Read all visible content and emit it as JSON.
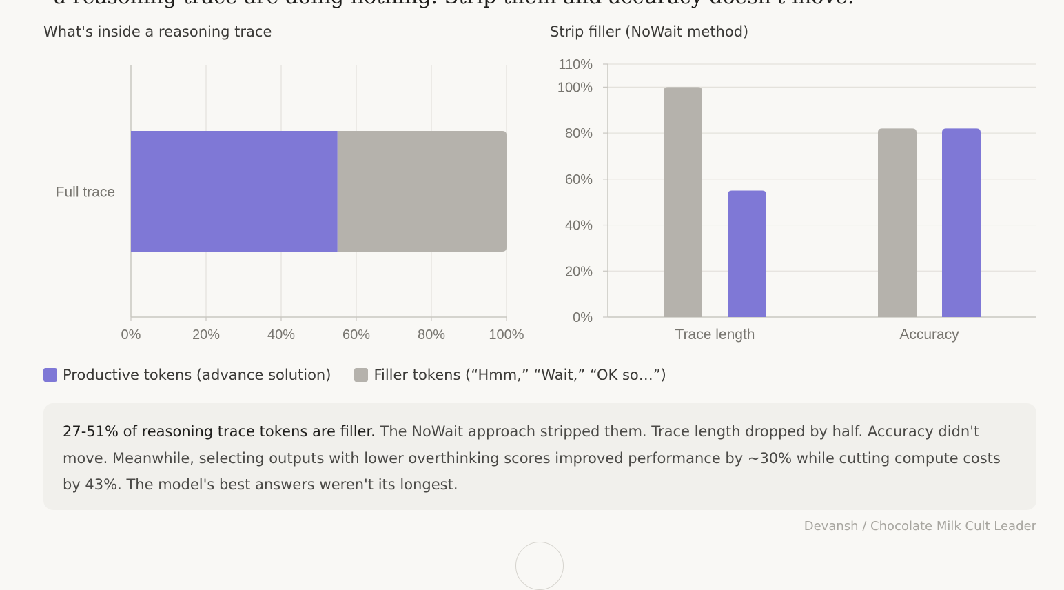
{
  "headline_partial": "a reasoning trace are doing nothing. Strip them and accuracy doesn't move.",
  "colors": {
    "productive": "#7f78d6",
    "filler": "#b5b2ac",
    "grid": "#e4e2dc",
    "axis": "#c9c7c1"
  },
  "chart_data": [
    {
      "type": "bar",
      "orientation": "horizontal",
      "stacked": true,
      "title": "What's inside a reasoning trace",
      "categories": [
        "Full trace"
      ],
      "series": [
        {
          "name": "Productive tokens (advance solution)",
          "color": "#7f78d6",
          "values": [
            55
          ]
        },
        {
          "name": "Filler tokens (“Hmm,” “Wait,” “OK so…”)",
          "color": "#b5b2ac",
          "values": [
            45
          ]
        }
      ],
      "xlim": [
        0,
        100
      ],
      "xticks": [
        "0%",
        "20%",
        "40%",
        "60%",
        "80%",
        "100%"
      ],
      "grid": true
    },
    {
      "type": "bar",
      "title": "Strip filler (NoWait method)",
      "categories": [
        "Trace length",
        "Accuracy"
      ],
      "series": [
        {
          "color": "#b5b2ac",
          "values": [
            100,
            82
          ]
        },
        {
          "color": "#7f78d6",
          "values": [
            55,
            82
          ]
        }
      ],
      "ylim": [
        0,
        110
      ],
      "yticks": [
        "0%",
        "20%",
        "40%",
        "60%",
        "80%",
        "100%",
        "110%"
      ],
      "grid": true
    }
  ],
  "legend": {
    "productive": "Productive tokens (advance solution)",
    "filler": "Filler tokens (“Hmm,” “Wait,” “OK so…”)"
  },
  "callout": {
    "strong": "27-51% of reasoning trace tokens are filler.",
    "body": " The NoWait approach stripped them. Trace length dropped by half. Accuracy didn't move. Meanwhile, selecting outputs with lower overthinking scores improved performance by ~30% while cutting compute costs by 43%. The model's best answers weren't its longest."
  },
  "credit": "Devansh / Chocolate Milk Cult Leader"
}
